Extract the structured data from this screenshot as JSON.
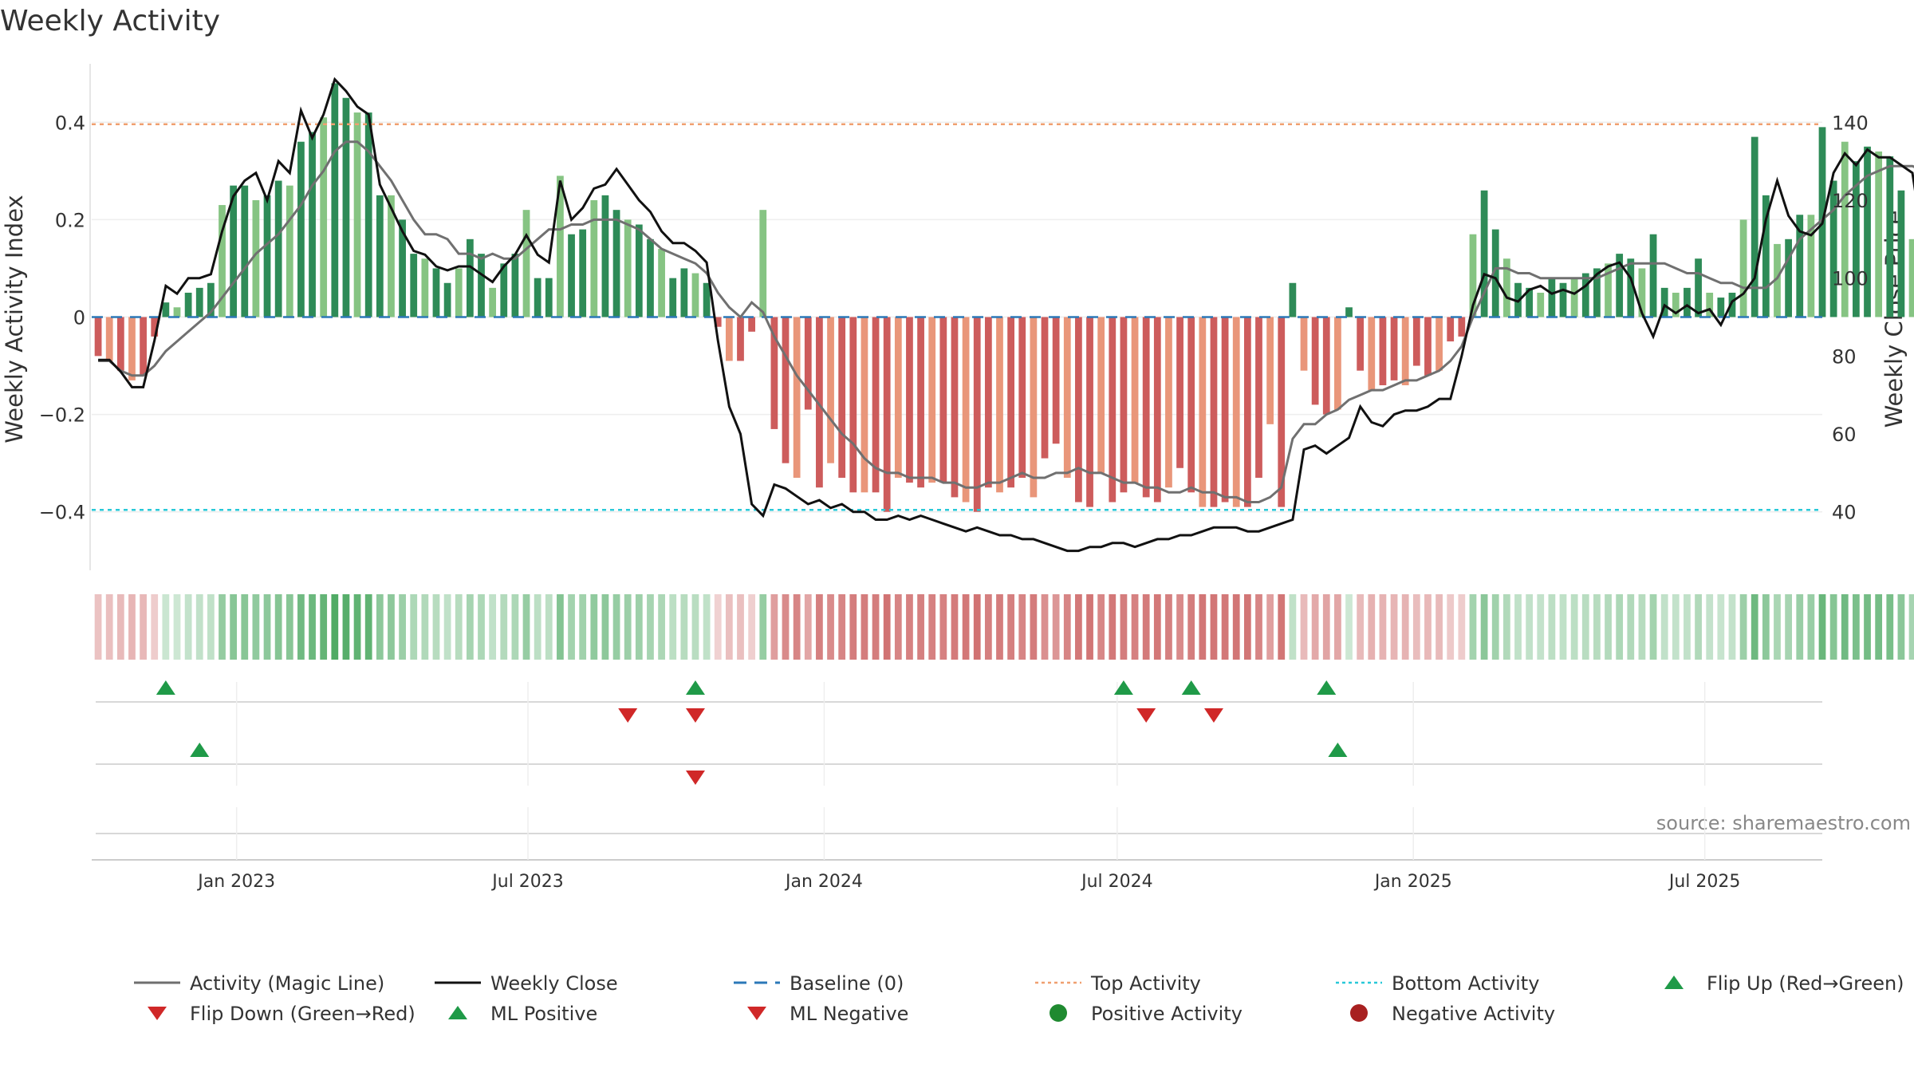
{
  "chart_data": {
    "type": "bar",
    "title": "Weekly Activity",
    "ylabel": "Weekly Activity Index",
    "y2label": "Weekly Close Price",
    "source": "source: sharemaestro.com",
    "ylim": [
      -0.52,
      0.52
    ],
    "y2lim": [
      25,
      155
    ],
    "yticks": [
      -0.4,
      -0.2,
      0,
      0.2,
      0.4
    ],
    "ytick_labels": [
      "−0.4",
      "−0.2",
      "0",
      "0.2",
      "0.4"
    ],
    "y2ticks": [
      40,
      60,
      80,
      100,
      120,
      140
    ],
    "y2tick_labels": [
      "40",
      "60",
      "80",
      "100",
      "120",
      "140"
    ],
    "x_start": "2022-10-03",
    "x_end": "2025-09-12",
    "x_ticks": [
      {
        "date": "2023-01-01",
        "label": "Jan 2023"
      },
      {
        "date": "2023-07-01",
        "label": "Jul 2023"
      },
      {
        "date": "2024-01-01",
        "label": "Jan 2024"
      },
      {
        "date": "2024-07-01",
        "label": "Jul 2024"
      },
      {
        "date": "2025-01-01",
        "label": "Jan 2025"
      },
      {
        "date": "2025-07-01",
        "label": "Jul 2025"
      }
    ],
    "top_activity": 0.396,
    "bottom_activity": -0.396,
    "weeks_start": "2022-10-07",
    "activity": [
      -0.08,
      -0.09,
      -0.11,
      -0.13,
      -0.12,
      -0.04,
      0.03,
      0.02,
      0.05,
      0.06,
      0.07,
      0.23,
      0.27,
      0.27,
      0.24,
      0.25,
      0.28,
      0.27,
      0.36,
      0.38,
      0.41,
      0.48,
      0.45,
      0.42,
      0.42,
      0.25,
      0.25,
      0.2,
      0.13,
      0.12,
      0.1,
      0.07,
      0.1,
      0.16,
      0.13,
      0.06,
      0.11,
      0.13,
      0.22,
      0.08,
      0.08,
      0.29,
      0.17,
      0.18,
      0.24,
      0.25,
      0.22,
      0.2,
      0.19,
      0.16,
      0.14,
      0.08,
      0.1,
      0.09,
      0.07,
      -0.02,
      -0.09,
      -0.09,
      -0.03,
      0.22,
      -0.23,
      -0.3,
      -0.33,
      -0.19,
      -0.35,
      -0.3,
      -0.33,
      -0.36,
      -0.36,
      -0.36,
      -0.4,
      -0.33,
      -0.34,
      -0.35,
      -0.34,
      -0.34,
      -0.37,
      -0.38,
      -0.4,
      -0.35,
      -0.36,
      -0.35,
      -0.33,
      -0.37,
      -0.29,
      -0.26,
      -0.33,
      -0.38,
      -0.39,
      -0.32,
      -0.38,
      -0.36,
      -0.34,
      -0.37,
      -0.38,
      -0.35,
      -0.31,
      -0.36,
      -0.39,
      -0.39,
      -0.38,
      -0.39,
      -0.39,
      -0.33,
      -0.22,
      -0.39,
      0.07,
      -0.11,
      -0.18,
      -0.2,
      -0.19,
      0.02,
      -0.11,
      -0.15,
      -0.14,
      -0.13,
      -0.14,
      -0.1,
      -0.12,
      -0.11,
      -0.05,
      -0.04,
      0.17,
      0.26,
      0.18,
      0.12,
      0.07,
      0.06,
      0.05,
      0.08,
      0.07,
      0.08,
      0.09,
      0.1,
      0.11,
      0.13,
      0.12,
      0.1,
      0.17,
      0.06,
      0.05,
      0.06,
      0.12,
      0.05,
      0.04,
      0.05,
      0.2,
      0.37,
      0.25,
      0.15,
      0.16,
      0.21,
      0.21,
      0.39,
      0.28,
      0.36,
      0.32,
      0.35,
      0.34,
      0.33,
      0.26,
      0.16,
      0.17,
      0.29,
      0.21,
      0.24,
      0.25,
      0.26,
      0.22
    ],
    "shades": [
      2,
      1,
      2,
      1,
      2,
      0,
      2,
      1,
      2,
      0,
      2,
      1,
      0,
      2,
      1,
      0,
      2,
      1,
      2,
      0,
      1,
      2,
      0,
      1,
      2,
      0,
      1,
      2,
      0,
      1,
      2,
      0,
      1,
      2,
      0,
      1,
      2,
      0,
      1,
      2,
      0,
      1,
      2,
      0,
      1,
      2,
      0,
      1,
      2,
      0,
      1,
      2,
      0,
      1,
      2,
      0,
      1,
      2,
      0,
      1,
      2,
      0,
      1,
      2,
      0,
      1,
      2,
      0,
      1,
      2,
      0,
      1,
      2,
      0,
      1,
      2,
      0,
      1,
      2,
      0,
      1,
      2,
      0,
      1,
      2,
      0,
      1,
      2,
      0,
      1,
      2,
      0,
      1,
      2,
      0,
      1,
      2,
      0,
      1,
      2,
      0,
      1,
      2,
      0,
      1,
      2,
      0,
      1,
      2,
      0,
      1,
      2,
      0,
      1,
      2,
      0,
      1,
      2,
      0,
      1,
      2,
      0,
      1,
      2,
      0,
      1,
      2,
      0,
      1,
      2,
      0,
      1,
      2,
      0,
      1,
      2,
      0,
      1,
      2,
      0,
      1,
      2,
      0,
      1,
      2,
      0,
      1,
      2,
      0,
      1,
      2,
      0,
      1,
      2,
      0,
      1,
      2,
      0,
      1,
      2,
      0,
      1,
      2
    ],
    "magic_line": [
      -0.09,
      -0.09,
      -0.11,
      -0.12,
      -0.12,
      -0.1,
      -0.07,
      -0.05,
      -0.03,
      -0.01,
      0.01,
      0.04,
      0.07,
      0.1,
      0.13,
      0.15,
      0.17,
      0.2,
      0.23,
      0.27,
      0.3,
      0.34,
      0.36,
      0.36,
      0.34,
      0.31,
      0.28,
      0.24,
      0.2,
      0.17,
      0.17,
      0.16,
      0.13,
      0.13,
      0.12,
      0.13,
      0.12,
      0.12,
      0.14,
      0.16,
      0.18,
      0.18,
      0.19,
      0.19,
      0.2,
      0.2,
      0.2,
      0.19,
      0.18,
      0.16,
      0.14,
      0.13,
      0.12,
      0.11,
      0.09,
      0.05,
      0.02,
      0.0,
      0.03,
      0.01,
      -0.04,
      -0.08,
      -0.12,
      -0.15,
      -0.18,
      -0.21,
      -0.24,
      -0.26,
      -0.29,
      -0.31,
      -0.32,
      -0.32,
      -0.33,
      -0.33,
      -0.33,
      -0.34,
      -0.34,
      -0.35,
      -0.35,
      -0.34,
      -0.34,
      -0.33,
      -0.32,
      -0.33,
      -0.33,
      -0.32,
      -0.32,
      -0.31,
      -0.32,
      -0.32,
      -0.33,
      -0.34,
      -0.34,
      -0.35,
      -0.35,
      -0.36,
      -0.36,
      -0.35,
      -0.36,
      -0.36,
      -0.37,
      -0.37,
      -0.38,
      -0.38,
      -0.37,
      -0.35,
      -0.25,
      -0.22,
      -0.22,
      -0.2,
      -0.19,
      -0.17,
      -0.16,
      -0.15,
      -0.15,
      -0.14,
      -0.13,
      -0.13,
      -0.12,
      -0.11,
      -0.09,
      -0.06,
      0.0,
      0.05,
      0.1,
      0.1,
      0.09,
      0.09,
      0.08,
      0.08,
      0.08,
      0.08,
      0.08,
      0.08,
      0.09,
      0.1,
      0.11,
      0.11,
      0.11,
      0.11,
      0.1,
      0.09,
      0.09,
      0.08,
      0.07,
      0.07,
      0.06,
      0.06,
      0.06,
      0.08,
      0.12,
      0.16,
      0.18,
      0.2,
      0.22,
      0.25,
      0.27,
      0.29,
      0.3,
      0.31,
      0.31,
      0.31,
      0.3,
      0.28,
      0.26,
      0.24,
      0.25,
      0.24,
      0.25,
      0.25,
      0.25
    ],
    "weekly_close": [
      79,
      79,
      76,
      72,
      72,
      84,
      98,
      96,
      100,
      100,
      101,
      112,
      121,
      125,
      127,
      120,
      130,
      127,
      143,
      136,
      142,
      151,
      148,
      144,
      142,
      124,
      118,
      112,
      107,
      106,
      103,
      102,
      103,
      103,
      101,
      99,
      103,
      106,
      111,
      106,
      104,
      125,
      115,
      118,
      123,
      124,
      128,
      124,
      120,
      117,
      112,
      109,
      109,
      107,
      104,
      84,
      67,
      60,
      42,
      39,
      47,
      46,
      44,
      42,
      43,
      41,
      42,
      40,
      40,
      38,
      38,
      39,
      38,
      39,
      38,
      37,
      36,
      35,
      36,
      35,
      34,
      34,
      33,
      33,
      32,
      31,
      30,
      30,
      31,
      31,
      32,
      32,
      31,
      32,
      33,
      33,
      34,
      34,
      35,
      36,
      36,
      36,
      35,
      35,
      36,
      37,
      38,
      56,
      57,
      55,
      57,
      59,
      67,
      63,
      62,
      65,
      66,
      66,
      67,
      69,
      69,
      80,
      93,
      101,
      100,
      95,
      94,
      97,
      98,
      96,
      97,
      96,
      98,
      101,
      103,
      104,
      100,
      91,
      85,
      93,
      91,
      93,
      91,
      92,
      88,
      94,
      96,
      100,
      115,
      125,
      116,
      112,
      111,
      114,
      127,
      132,
      129,
      133,
      131,
      131,
      129,
      127,
      108,
      111,
      124,
      117,
      121,
      125,
      118,
      121,
      121,
      117
    ],
    "flip_up": [
      "2022-11-18",
      "2023-10-13",
      "2024-07-05",
      "2024-08-16",
      "2024-11-08"
    ],
    "flip_down": [
      "2023-09-01",
      "2023-10-13",
      "2024-07-19",
      "2024-08-30"
    ],
    "ml_positive": [
      "2022-12-09",
      "2024-11-15"
    ],
    "ml_negative": [
      "2023-10-13"
    ],
    "legend": [
      {
        "label": "Activity (Magic Line)",
        "kind": "line",
        "color": "#6e6e6e"
      },
      {
        "label": "Weekly Close",
        "kind": "line",
        "color": "#111111"
      },
      {
        "label": "Baseline (0)",
        "kind": "dashed",
        "color": "#2b78b8"
      },
      {
        "label": "Top Activity",
        "kind": "dotted",
        "color": "#f0a070"
      },
      {
        "label": "Bottom Activity",
        "kind": "dotted",
        "color": "#28c8d8"
      },
      {
        "label": "Flip Up (Red→Green)",
        "kind": "tri-up",
        "color": "#1f9a48"
      },
      {
        "label": "Flip Down (Green→Red)",
        "kind": "tri-down",
        "color": "#d02828"
      },
      {
        "label": "ML Positive",
        "kind": "tri-up",
        "color": "#1f9a48"
      },
      {
        "label": "ML Negative",
        "kind": "tri-down",
        "color": "#d02828"
      },
      {
        "label": "Positive Activity",
        "kind": "dot",
        "color": "#1f8a30"
      },
      {
        "label": "Negative Activity",
        "kind": "dot",
        "color": "#a82020"
      }
    ],
    "colors": {
      "pos_dark": "#2e8b57",
      "pos_light": "#86c483",
      "neg_dark": "#cd5c5c",
      "neg_light": "#e9967a",
      "strip_pos": "#4aa860",
      "strip_neg": "#c95a5a",
      "tri_up": "#1f9a48",
      "tri_down": "#d02828"
    }
  }
}
